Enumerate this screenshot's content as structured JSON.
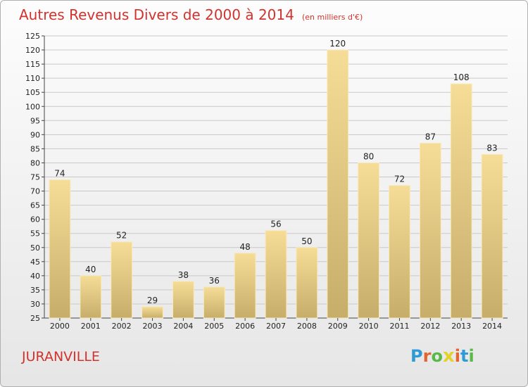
{
  "chart_data": {
    "type": "bar",
    "title": "Autres Revenus Divers de 2000 à 2014",
    "subtitle": "(en milliers d'€)",
    "categories": [
      "2000",
      "2001",
      "2002",
      "2003",
      "2004",
      "2005",
      "2006",
      "2007",
      "2008",
      "2009",
      "2010",
      "2011",
      "2012",
      "2013",
      "2014"
    ],
    "values": [
      74,
      40,
      52,
      29,
      38,
      36,
      48,
      56,
      50,
      120,
      80,
      72,
      87,
      108,
      83
    ],
    "ylim": [
      25,
      125
    ],
    "yticks": [
      25,
      30,
      35,
      40,
      45,
      50,
      55,
      60,
      65,
      70,
      75,
      80,
      85,
      90,
      95,
      100,
      105,
      110,
      115,
      120,
      125
    ],
    "grid": true,
    "bar_color": "#d9c27a",
    "label": "JURANVILLE"
  },
  "logo": {
    "letters": [
      "P",
      "r",
      "o",
      "x",
      "i",
      "t",
      "i"
    ],
    "colors": [
      "#2f9bd6",
      "#e3642c",
      "#58b947",
      "#e3d22c",
      "#e3642c",
      "#2f9bd6",
      "#58b947"
    ]
  }
}
